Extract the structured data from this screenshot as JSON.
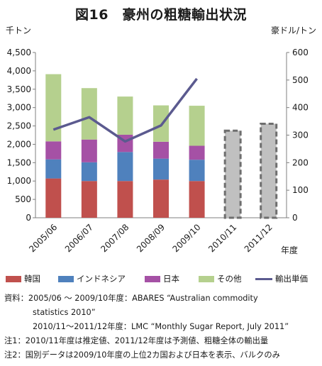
{
  "title": "図16　豪州の粗糖輸出状況",
  "left_unit": "千トン",
  "right_unit": "豪ドル/トン",
  "x_unit": "年度",
  "legend": [
    {
      "label": "韓国",
      "color": "#c0504d",
      "kind": "bar"
    },
    {
      "label": "インドネシア",
      "color": "#4f81bd",
      "kind": "bar"
    },
    {
      "label": "日本",
      "color": "#a551a5",
      "kind": "bar"
    },
    {
      "label": "その他",
      "color": "#b5d08e",
      "kind": "bar"
    },
    {
      "label": "輸出単価",
      "color": "#5b5a8f",
      "kind": "line"
    }
  ],
  "notes": {
    "line1": "資料：2005/06 ～ 2009/10年度：ABARES “Australian commodity",
    "line2": "statistics 2010”",
    "line3": "2010/11～2011/12年度：LMC “Monthly Sugar Report, July 2011”",
    "line4": "注1：2010/11年度は推定値、2011/12年度は予測値、粗糖全体の輸出量",
    "line5": "注2：国別データは2009/10年度の上位2カ国および日本を表示、バルクのみ"
  },
  "chart_data": {
    "type": "bar",
    "stacked": true,
    "categories": [
      "2005/06",
      "2006/07",
      "2007/08",
      "2008/09",
      "2009/10",
      "2010/11",
      "2011/12"
    ],
    "y_left": {
      "min": 0,
      "max": 4500,
      "step": 500,
      "ticks": [
        "0",
        "500",
        "1,000",
        "1,500",
        "2,000",
        "2,500",
        "3,000",
        "3,500",
        "4,000",
        "4,500"
      ]
    },
    "y_right": {
      "min": 0,
      "max": 600,
      "step": 100,
      "ticks": [
        "0",
        "100",
        "200",
        "300",
        "400",
        "500",
        "600"
      ]
    },
    "series": [
      {
        "name": "韓国",
        "color": "#c0504d",
        "values": [
          1070,
          1000,
          1000,
          1040,
          1000,
          null,
          null
        ]
      },
      {
        "name": "インドネシア",
        "color": "#4f81bd",
        "values": [
          520,
          510,
          790,
          570,
          580,
          null,
          null
        ]
      },
      {
        "name": "日本",
        "color": "#a551a5",
        "values": [
          490,
          620,
          470,
          460,
          380,
          null,
          null
        ]
      },
      {
        "name": "その他",
        "color": "#b5d08e",
        "values": [
          1830,
          1400,
          1040,
          990,
          1090,
          null,
          null
        ]
      }
    ],
    "totals_dashed": {
      "name": "粗糖全体の輸出量",
      "color": "#c0c0c0",
      "values": [
        null,
        null,
        null,
        null,
        null,
        2370,
        2560
      ]
    },
    "line": {
      "name": "輸出単価",
      "axis": "right",
      "color": "#5b5a8f",
      "values": [
        320,
        365,
        277,
        335,
        505,
        null,
        null
      ]
    },
    "grid": false
  }
}
